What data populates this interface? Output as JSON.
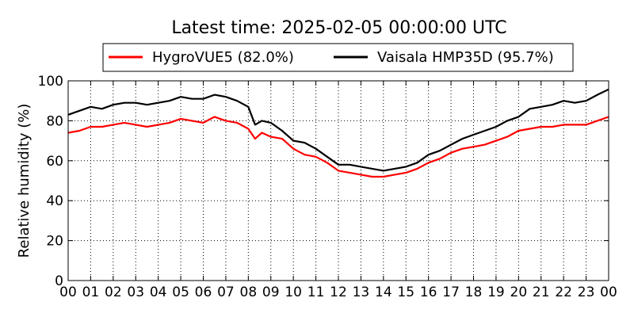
{
  "chart_data": {
    "type": "line",
    "title": "Latest time: 2025-02-05 00:00:00 UTC",
    "xlabel": "",
    "ylabel": "Relative humidity (%)",
    "ylim": [
      0,
      100
    ],
    "xlim": [
      0,
      24
    ],
    "grid": true,
    "legend_position": "top",
    "x_tick_labels": [
      "00",
      "01",
      "02",
      "03",
      "04",
      "05",
      "06",
      "07",
      "08",
      "09",
      "10",
      "11",
      "12",
      "13",
      "14",
      "15",
      "16",
      "17",
      "18",
      "19",
      "20",
      "21",
      "22",
      "23",
      "00"
    ],
    "y_ticks": [
      0,
      20,
      40,
      60,
      80,
      100
    ],
    "x": [
      0,
      0.5,
      1,
      1.5,
      2,
      2.5,
      3,
      3.5,
      4,
      4.5,
      5,
      5.5,
      6,
      6.5,
      7,
      7.5,
      8,
      8.3,
      8.6,
      9,
      9.5,
      10,
      10.5,
      11,
      11.5,
      12,
      12.5,
      13,
      13.5,
      14,
      14.5,
      15,
      15.5,
      16,
      16.5,
      17,
      17.5,
      18,
      18.5,
      19,
      19.5,
      20,
      20.5,
      21,
      21.5,
      22,
      22.5,
      23,
      23.5,
      24
    ],
    "series": [
      {
        "name": "HygroVUE5 (82.0%)",
        "color": "#ff0000",
        "values": [
          74,
          75,
          77,
          77,
          78,
          79,
          78,
          77,
          78,
          79,
          81,
          80,
          79,
          82,
          80,
          79,
          76,
          71,
          74,
          72,
          71,
          66,
          63,
          62,
          59,
          55,
          54,
          53,
          52,
          52,
          53,
          54,
          56,
          59,
          61,
          64,
          66,
          67,
          68,
          70,
          72,
          75,
          76,
          77,
          77,
          78,
          78,
          78,
          80,
          82
        ]
      },
      {
        "name": "Vaisala HMP35D (95.7%)",
        "color": "#000000",
        "values": [
          83,
          85,
          87,
          86,
          88,
          89,
          89,
          88,
          89,
          90,
          92,
          91,
          91,
          93,
          92,
          90,
          87,
          78,
          80,
          79,
          75,
          70,
          69,
          66,
          62,
          58,
          58,
          57,
          56,
          55,
          56,
          57,
          59,
          63,
          65,
          68,
          71,
          73,
          75,
          77,
          80,
          82,
          86,
          87,
          88,
          90,
          89,
          90,
          93,
          95.7
        ]
      }
    ]
  }
}
